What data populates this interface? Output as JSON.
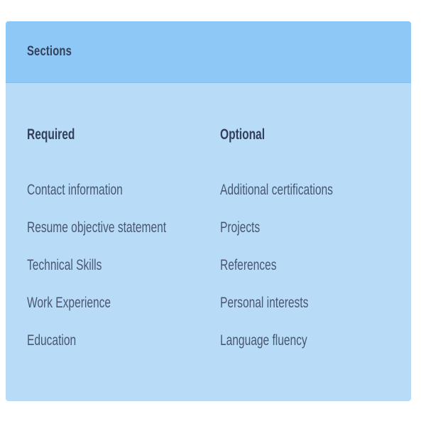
{
  "card": {
    "title": "Sections"
  },
  "required": {
    "heading": "Required",
    "items": [
      "Contact information",
      "Resume objective statement",
      "Technical Skills",
      "Work Experience",
      "Education"
    ]
  },
  "optional": {
    "heading": "Optional",
    "items": [
      "Additional certifications",
      "Projects",
      "References",
      "Personal interests",
      "Language fluency"
    ]
  },
  "colors": {
    "header_bg": "#8ec8f6",
    "card_bg": "#b8dcf8",
    "text": "#34405a"
  }
}
